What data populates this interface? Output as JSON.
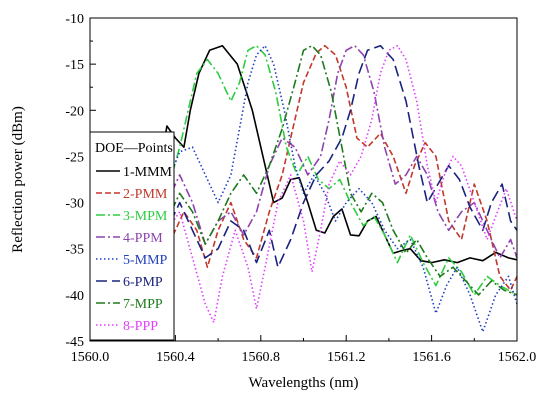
{
  "chart_data": {
    "type": "line",
    "title": "",
    "xlabel": "Wavelengths (nm)",
    "ylabel": "Reflection power (dBm)",
    "xlim": [
      1560.0,
      1562.0
    ],
    "ylim": [
      -45,
      -10
    ],
    "x_ticks": [
      "1560.0",
      "1560.4",
      "1560.8",
      "1561.2",
      "1561.6",
      "1562.0"
    ],
    "y_ticks": [
      "-10",
      "-15",
      "-20",
      "-25",
      "-30",
      "-35",
      "-40",
      "-45"
    ],
    "grid": false,
    "legend": {
      "title": "DOE—Points",
      "placement": "left"
    },
    "series": [
      {
        "name": "1-MMM",
        "color": "#000000",
        "dash": "solid",
        "points": [
          [
            1560.3,
            -33
          ],
          [
            1560.33,
            -26
          ],
          [
            1560.36,
            -21.7
          ],
          [
            1560.4,
            -23
          ],
          [
            1560.44,
            -24
          ],
          [
            1560.47,
            -20
          ],
          [
            1560.51,
            -16
          ],
          [
            1560.56,
            -13.5
          ],
          [
            1560.62,
            -13
          ],
          [
            1560.69,
            -15
          ],
          [
            1560.76,
            -20
          ],
          [
            1560.82,
            -26
          ],
          [
            1560.86,
            -30
          ],
          [
            1560.9,
            -29.5
          ],
          [
            1560.94,
            -27.5
          ],
          [
            1560.98,
            -27.3
          ],
          [
            1561.02,
            -30
          ],
          [
            1561.06,
            -33
          ],
          [
            1561.1,
            -33.3
          ],
          [
            1561.14,
            -31.5
          ],
          [
            1561.18,
            -30.7
          ],
          [
            1561.22,
            -33.5
          ],
          [
            1561.26,
            -33.6
          ],
          [
            1561.3,
            -32
          ],
          [
            1561.34,
            -31.5
          ],
          [
            1561.38,
            -33.5
          ],
          [
            1561.42,
            -35.5
          ],
          [
            1561.46,
            -35.2
          ],
          [
            1561.5,
            -35
          ],
          [
            1561.55,
            -36.3
          ],
          [
            1561.6,
            -36.5
          ],
          [
            1561.66,
            -36.2
          ],
          [
            1561.72,
            -36.5
          ],
          [
            1561.78,
            -36
          ],
          [
            1561.84,
            -36.3
          ],
          [
            1561.9,
            -35.4
          ],
          [
            1561.96,
            -36
          ],
          [
            1562.0,
            -36.2
          ]
        ]
      },
      {
        "name": "2-PMM",
        "color": "#c0392b",
        "dash": "dash-short",
        "points": [
          [
            1560.3,
            -29
          ],
          [
            1560.38,
            -34
          ],
          [
            1560.44,
            -31
          ],
          [
            1560.5,
            -33
          ],
          [
            1560.55,
            -37
          ],
          [
            1560.6,
            -33
          ],
          [
            1560.66,
            -30
          ],
          [
            1560.72,
            -34
          ],
          [
            1560.78,
            -36
          ],
          [
            1560.84,
            -31
          ],
          [
            1560.9,
            -27
          ],
          [
            1560.95,
            -22
          ],
          [
            1561.0,
            -17
          ],
          [
            1561.06,
            -13.8
          ],
          [
            1561.1,
            -13
          ],
          [
            1561.15,
            -14
          ],
          [
            1561.2,
            -17.5
          ],
          [
            1561.25,
            -23
          ],
          [
            1561.3,
            -24
          ],
          [
            1561.36,
            -22.5
          ],
          [
            1561.42,
            -25
          ],
          [
            1561.48,
            -29
          ],
          [
            1561.52,
            -26
          ],
          [
            1561.57,
            -23.5
          ],
          [
            1561.62,
            -25
          ],
          [
            1561.68,
            -32
          ],
          [
            1561.74,
            -34
          ],
          [
            1561.8,
            -28
          ],
          [
            1561.86,
            -32
          ],
          [
            1561.92,
            -38
          ],
          [
            1561.97,
            -39.5
          ],
          [
            1562.0,
            -38
          ]
        ]
      },
      {
        "name": "3-MPM",
        "color": "#2ecc40",
        "dash": "dash-dot",
        "points": [
          [
            1560.3,
            -24
          ],
          [
            1560.36,
            -29
          ],
          [
            1560.42,
            -24
          ],
          [
            1560.46,
            -20
          ],
          [
            1560.5,
            -16
          ],
          [
            1560.55,
            -14.5
          ],
          [
            1560.6,
            -16
          ],
          [
            1560.66,
            -19
          ],
          [
            1560.7,
            -17
          ],
          [
            1560.74,
            -13.5
          ],
          [
            1560.78,
            -13
          ],
          [
            1560.82,
            -14
          ],
          [
            1560.87,
            -18
          ],
          [
            1560.92,
            -24
          ],
          [
            1560.97,
            -27
          ],
          [
            1561.02,
            -25
          ],
          [
            1561.07,
            -27.5
          ],
          [
            1561.12,
            -28.5
          ],
          [
            1561.17,
            -27.5
          ],
          [
            1561.22,
            -30
          ],
          [
            1561.28,
            -32.5
          ],
          [
            1561.33,
            -31.5
          ],
          [
            1561.38,
            -33.5
          ],
          [
            1561.44,
            -36.5
          ],
          [
            1561.5,
            -33.5
          ],
          [
            1561.56,
            -36.5
          ],
          [
            1561.62,
            -39
          ],
          [
            1561.68,
            -36
          ],
          [
            1561.74,
            -37.5
          ],
          [
            1561.8,
            -40
          ],
          [
            1561.86,
            -38
          ],
          [
            1561.92,
            -39
          ],
          [
            1562.0,
            -40
          ]
        ]
      },
      {
        "name": "4-PPM",
        "color": "#8e44ad",
        "dash": "dash-dot",
        "points": [
          [
            1560.3,
            -34
          ],
          [
            1560.36,
            -30
          ],
          [
            1560.42,
            -27
          ],
          [
            1560.48,
            -30
          ],
          [
            1560.54,
            -34.5
          ],
          [
            1560.6,
            -32
          ],
          [
            1560.66,
            -31
          ],
          [
            1560.72,
            -33.5
          ],
          [
            1560.78,
            -31
          ],
          [
            1560.84,
            -26
          ],
          [
            1560.9,
            -23
          ],
          [
            1560.96,
            -24
          ],
          [
            1561.02,
            -27
          ],
          [
            1561.08,
            -25
          ],
          [
            1561.12,
            -21
          ],
          [
            1561.16,
            -16
          ],
          [
            1561.2,
            -13.5
          ],
          [
            1561.24,
            -13
          ],
          [
            1561.28,
            -14
          ],
          [
            1561.33,
            -18
          ],
          [
            1561.38,
            -24
          ],
          [
            1561.43,
            -28
          ],
          [
            1561.48,
            -27
          ],
          [
            1561.53,
            -25
          ],
          [
            1561.58,
            -27
          ],
          [
            1561.63,
            -31
          ],
          [
            1561.68,
            -33
          ],
          [
            1561.74,
            -31
          ],
          [
            1561.8,
            -30
          ],
          [
            1561.86,
            -33
          ],
          [
            1561.92,
            -36
          ],
          [
            1561.97,
            -34
          ],
          [
            1562.0,
            -36
          ]
        ]
      },
      {
        "name": "5-MMP",
        "color": "#1f3fbf",
        "dash": "dot",
        "points": [
          [
            1560.3,
            -33
          ],
          [
            1560.36,
            -28
          ],
          [
            1560.42,
            -24.5
          ],
          [
            1560.48,
            -24
          ],
          [
            1560.54,
            -27
          ],
          [
            1560.6,
            -30
          ],
          [
            1560.66,
            -27
          ],
          [
            1560.7,
            -22
          ],
          [
            1560.74,
            -17
          ],
          [
            1560.78,
            -14
          ],
          [
            1560.82,
            -13
          ],
          [
            1560.86,
            -15
          ],
          [
            1560.91,
            -20
          ],
          [
            1560.96,
            -26
          ],
          [
            1561.0,
            -29
          ],
          [
            1561.05,
            -27
          ],
          [
            1561.1,
            -29
          ],
          [
            1561.15,
            -32
          ],
          [
            1561.2,
            -30
          ],
          [
            1561.26,
            -28.5
          ],
          [
            1561.32,
            -30
          ],
          [
            1561.38,
            -33
          ],
          [
            1561.44,
            -35
          ],
          [
            1561.5,
            -34
          ],
          [
            1561.56,
            -37
          ],
          [
            1561.62,
            -42
          ],
          [
            1561.67,
            -39
          ],
          [
            1561.72,
            -37
          ],
          [
            1561.78,
            -40
          ],
          [
            1561.84,
            -44
          ],
          [
            1561.9,
            -40
          ],
          [
            1561.96,
            -38
          ],
          [
            1562.0,
            -41
          ]
        ]
      },
      {
        "name": "6-PMP",
        "color": "#1a237e",
        "dash": "dash-long",
        "points": [
          [
            1560.3,
            -37
          ],
          [
            1560.36,
            -33
          ],
          [
            1560.42,
            -30
          ],
          [
            1560.48,
            -33
          ],
          [
            1560.54,
            -36
          ],
          [
            1560.6,
            -35
          ],
          [
            1560.66,
            -32
          ],
          [
            1560.72,
            -33
          ],
          [
            1560.78,
            -36.5
          ],
          [
            1560.84,
            -33
          ],
          [
            1560.88,
            -37
          ],
          [
            1560.94,
            -34
          ],
          [
            1561.0,
            -30
          ],
          [
            1561.06,
            -27
          ],
          [
            1561.12,
            -25.5
          ],
          [
            1561.18,
            -23
          ],
          [
            1561.22,
            -20
          ],
          [
            1561.26,
            -16
          ],
          [
            1561.3,
            -13.5
          ],
          [
            1561.36,
            -13
          ],
          [
            1561.42,
            -14.5
          ],
          [
            1561.48,
            -19
          ],
          [
            1561.54,
            -26
          ],
          [
            1561.58,
            -30
          ],
          [
            1561.63,
            -28
          ],
          [
            1561.68,
            -26
          ],
          [
            1561.73,
            -27.5
          ],
          [
            1561.78,
            -30.5
          ],
          [
            1561.84,
            -33
          ],
          [
            1561.88,
            -30
          ],
          [
            1561.93,
            -28
          ],
          [
            1561.97,
            -32
          ],
          [
            1562.0,
            -33
          ]
        ]
      },
      {
        "name": "7-MPP",
        "color": "#1e7a1e",
        "dash": "dash-dot",
        "points": [
          [
            1560.3,
            -36
          ],
          [
            1560.36,
            -32
          ],
          [
            1560.42,
            -29
          ],
          [
            1560.48,
            -31
          ],
          [
            1560.54,
            -34.5
          ],
          [
            1560.6,
            -32
          ],
          [
            1560.66,
            -29
          ],
          [
            1560.72,
            -27
          ],
          [
            1560.78,
            -29
          ],
          [
            1560.84,
            -26
          ],
          [
            1560.9,
            -22
          ],
          [
            1560.96,
            -17
          ],
          [
            1561.0,
            -13.5
          ],
          [
            1561.04,
            -13
          ],
          [
            1561.08,
            -14
          ],
          [
            1561.13,
            -18
          ],
          [
            1561.18,
            -24
          ],
          [
            1561.22,
            -29
          ],
          [
            1561.27,
            -31
          ],
          [
            1561.32,
            -29
          ],
          [
            1561.37,
            -30
          ],
          [
            1561.42,
            -33
          ],
          [
            1561.48,
            -35.5
          ],
          [
            1561.53,
            -34
          ],
          [
            1561.58,
            -36
          ],
          [
            1561.64,
            -38
          ],
          [
            1561.7,
            -37
          ],
          [
            1561.76,
            -38.5
          ],
          [
            1561.82,
            -40
          ],
          [
            1561.88,
            -38.5
          ],
          [
            1561.94,
            -39.5
          ],
          [
            1562.0,
            -40
          ]
        ]
      },
      {
        "name": "8-PPP",
        "color": "#e040fb",
        "dash": "dot",
        "points": [
          [
            1560.3,
            -37
          ],
          [
            1560.36,
            -33
          ],
          [
            1560.42,
            -31
          ],
          [
            1560.48,
            -36
          ],
          [
            1560.54,
            -41
          ],
          [
            1560.58,
            -43
          ],
          [
            1560.62,
            -38
          ],
          [
            1560.68,
            -33
          ],
          [
            1560.74,
            -37
          ],
          [
            1560.78,
            -41.5
          ],
          [
            1560.82,
            -37
          ],
          [
            1560.88,
            -30
          ],
          [
            1560.94,
            -27
          ],
          [
            1561.0,
            -32
          ],
          [
            1561.04,
            -37.5
          ],
          [
            1561.08,
            -33
          ],
          [
            1561.12,
            -28
          ],
          [
            1561.17,
            -25.5
          ],
          [
            1561.22,
            -27
          ],
          [
            1561.27,
            -25
          ],
          [
            1561.32,
            -21
          ],
          [
            1561.36,
            -16
          ],
          [
            1561.4,
            -13.5
          ],
          [
            1561.44,
            -13
          ],
          [
            1561.48,
            -14.5
          ],
          [
            1561.53,
            -19
          ],
          [
            1561.58,
            -26
          ],
          [
            1561.62,
            -30
          ],
          [
            1561.66,
            -27
          ],
          [
            1561.7,
            -25
          ],
          [
            1561.74,
            -26
          ],
          [
            1561.8,
            -30
          ],
          [
            1561.86,
            -34
          ],
          [
            1561.9,
            -31.5
          ],
          [
            1561.95,
            -28.5
          ],
          [
            1562.0,
            -32
          ]
        ]
      }
    ]
  }
}
